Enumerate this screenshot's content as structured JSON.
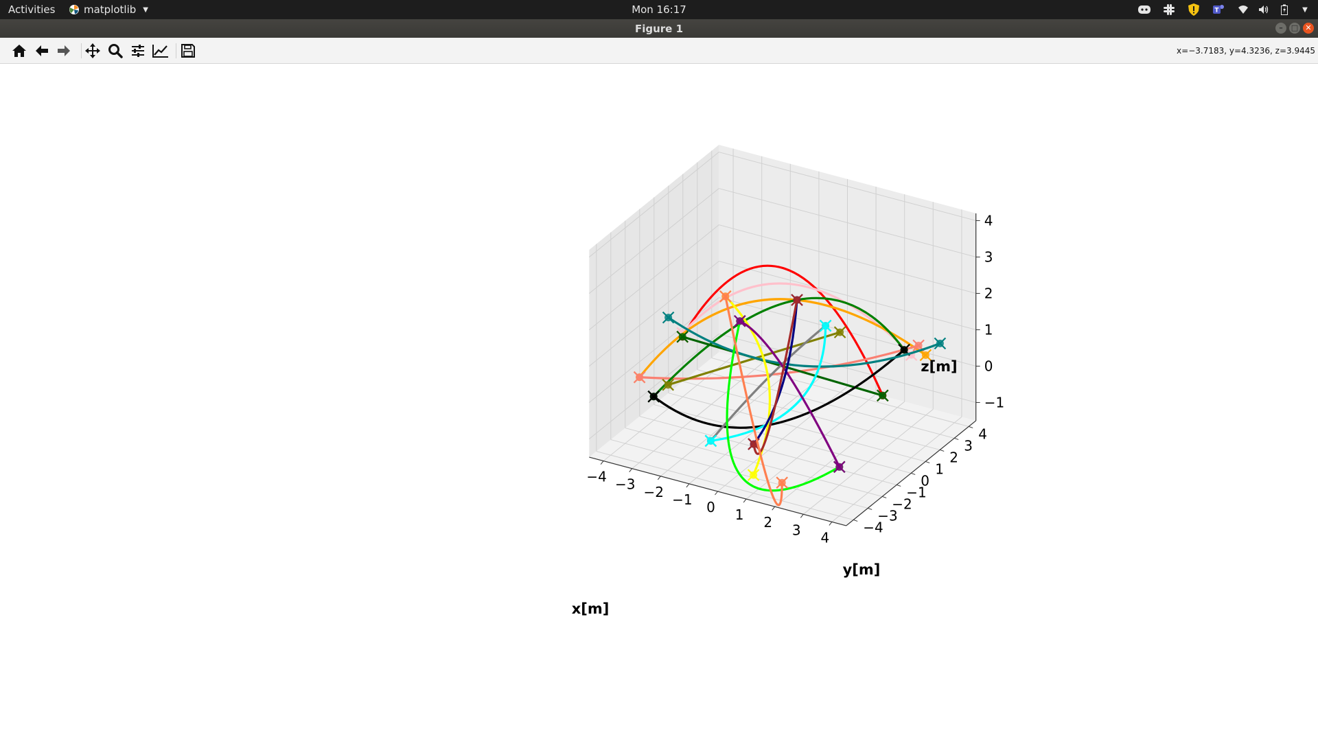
{
  "topbar": {
    "activities": "Activities",
    "app_name": "matplotlib",
    "clock": "Mon 16:17",
    "tray_icons": [
      "discord-icon",
      "slack-icon",
      "shield-warning-icon",
      "teams-icon",
      "wifi-icon",
      "volume-icon",
      "battery-icon",
      "system-menu-caret-icon"
    ]
  },
  "window": {
    "title": "Figure 1",
    "buttons": [
      "minimize",
      "maximize",
      "close"
    ]
  },
  "toolbar": {
    "tools": [
      "home-icon",
      "back-icon",
      "forward-icon",
      "pan-icon",
      "zoom-icon",
      "configure-subplots-icon",
      "edit-axes-icon",
      "save-icon"
    ],
    "coordinates": "x=−3.7183, y=4.3236, z=3.9445"
  },
  "chart_data": {
    "type": "line",
    "projection": "3d",
    "xlabel": "x[m]",
    "ylabel": "y[m]",
    "zlabel": "z[m]",
    "xticks": [
      "−4",
      "−3",
      "−2",
      "−1",
      "0",
      "1",
      "2",
      "3",
      "4"
    ],
    "yticks": [
      "−4",
      "−3",
      "−2",
      "−1",
      "0",
      "1",
      "2",
      "3",
      "4"
    ],
    "zticks": [
      "−1",
      "0",
      "1",
      "2",
      "3",
      "4"
    ],
    "xlim": [
      -4.5,
      4.5
    ],
    "ylim": [
      -4.5,
      4.5
    ],
    "zlim": [
      -1.5,
      4.2
    ],
    "grid": true,
    "series": [
      {
        "color": "#ff0000",
        "points": [
          [
            -3,
            -1,
            1
          ],
          [
            0,
            0,
            3.2
          ],
          [
            3,
            1,
            0
          ]
        ]
      },
      {
        "color": "#ffc0cb",
        "points": [
          [
            -3,
            -1,
            1.1
          ],
          [
            0,
            0.5,
            2.6
          ],
          [
            3.5,
            2,
            0.9
          ]
        ]
      },
      {
        "color": "#ffa500",
        "points": [
          [
            -4,
            -2,
            0
          ],
          [
            -1,
            1,
            1.8
          ],
          [
            4,
            2,
            1
          ]
        ]
      },
      {
        "color": "#fa8072",
        "points": [
          [
            -4,
            -2,
            0
          ],
          [
            0,
            0,
            0.3
          ],
          [
            3.5,
            2.5,
            1
          ]
        ]
      },
      {
        "color": "#008000",
        "points": [
          [
            -3,
            -3,
            0
          ],
          [
            0,
            1,
            2
          ],
          [
            3.5,
            1.5,
            1.2
          ]
        ]
      },
      {
        "color": "#006400",
        "points": [
          [
            -3,
            -1,
            1
          ],
          [
            0,
            0,
            0.5
          ],
          [
            3,
            1,
            0
          ]
        ]
      },
      {
        "color": "#000000",
        "points": [
          [
            -3,
            -3,
            0
          ],
          [
            0,
            -1,
            -0.8
          ],
          [
            3.5,
            1.5,
            1.2
          ]
        ]
      },
      {
        "color": "#808000",
        "points": [
          [
            -3,
            -2,
            0
          ],
          [
            -1,
            0,
            0.5
          ],
          [
            1,
            2,
            1
          ]
        ]
      },
      {
        "color": "#008080",
        "points": [
          [
            -4,
            0,
            1
          ],
          [
            0,
            1,
            0.2
          ],
          [
            4,
            3,
            1
          ]
        ]
      },
      {
        "color": "#808080",
        "points": [
          [
            -1,
            -3,
            -0.8
          ],
          [
            0,
            -1,
            0.5
          ],
          [
            1,
            1,
            1.5
          ]
        ]
      },
      {
        "color": "#00ffff",
        "points": [
          [
            -1,
            -3,
            -0.8
          ],
          [
            1,
            -1,
            0
          ],
          [
            1,
            1,
            1.5
          ]
        ]
      },
      {
        "color": "#ffff00",
        "points": [
          [
            -2,
            0,
            2
          ],
          [
            0,
            -1,
            0.5
          ],
          [
            1,
            -4,
            -1
          ]
        ]
      },
      {
        "color": "#00ff00",
        "points": [
          [
            -2,
            1,
            1
          ],
          [
            0,
            -3,
            -1.5
          ],
          [
            3,
            -2,
            -1
          ]
        ]
      },
      {
        "color": "#800080",
        "points": [
          [
            -2,
            1,
            1
          ],
          [
            0,
            0,
            0.5
          ],
          [
            3,
            -2,
            -1
          ]
        ]
      },
      {
        "color": "#000080",
        "points": [
          [
            0,
            1,
            2
          ],
          [
            0,
            0,
            0
          ],
          [
            0,
            -2,
            -1
          ]
        ]
      },
      {
        "color": "#a52a2a",
        "points": [
          [
            0,
            1,
            2
          ],
          [
            0,
            -1,
            -1
          ],
          [
            0,
            -2,
            -1
          ]
        ]
      },
      {
        "color": "#ff7f50",
        "points": [
          [
            -2,
            0,
            2
          ],
          [
            1,
            -3,
            -1.5
          ],
          [
            2,
            -4,
            -1
          ]
        ]
      }
    ]
  }
}
